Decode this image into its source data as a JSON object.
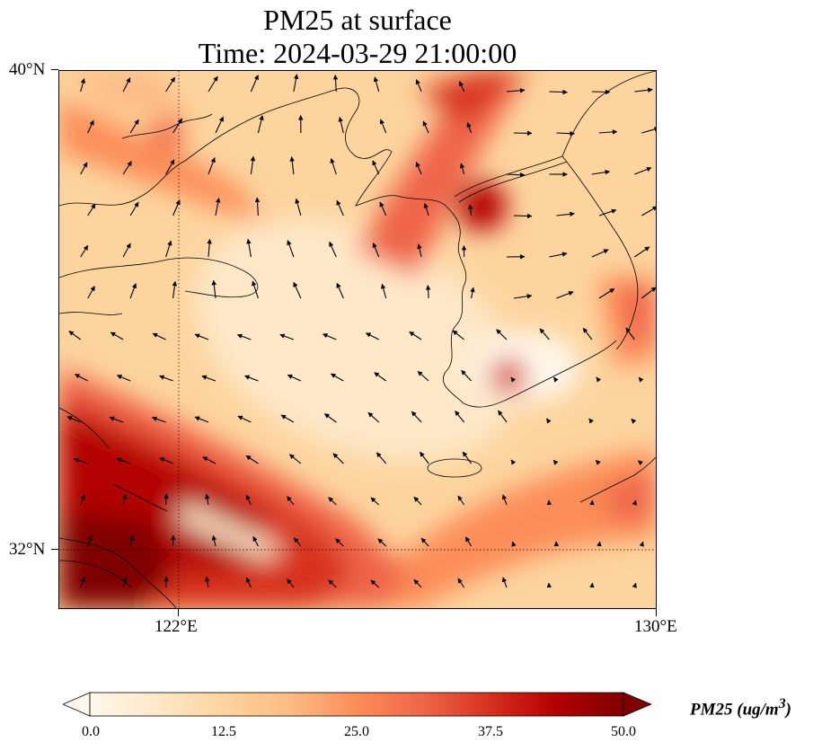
{
  "title": {
    "line1": "PM25 at surface",
    "line2": "Time: 2024-03-29 21:00:00"
  },
  "map": {
    "lon_range": [
      119.9,
      130.0
    ],
    "lat_range": [
      31.0,
      40.0
    ],
    "gridlines": {
      "lon": 122,
      "lat": 32,
      "style": "dotted"
    },
    "x_ticks": [
      "122°E",
      "130°E"
    ],
    "y_ticks": [
      "40°N",
      "32°N"
    ],
    "colormap": "OrRd",
    "layers": [
      "pm25-field",
      "coastlines",
      "wind-vectors"
    ]
  },
  "colorbar": {
    "min": 0.0,
    "max": 50.0,
    "extend": "both",
    "tick_labels": [
      "0.0",
      "12.5",
      "25.0",
      "37.5",
      "50.0"
    ],
    "label_html": "PM25 (ug/m<sup>3</sup>)",
    "colors": [
      "#fff7ec",
      "#fee8c8",
      "#fdd49e",
      "#fdbb84",
      "#fc8d59",
      "#ef6548",
      "#d7301f",
      "#b30000",
      "#7f0000"
    ]
  }
}
